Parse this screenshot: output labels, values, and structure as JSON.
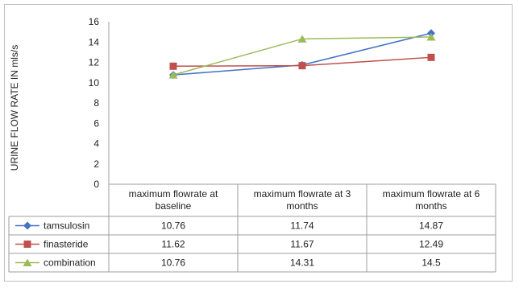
{
  "chart_data": {
    "type": "line",
    "title": "",
    "xlabel": "",
    "ylabel": "URINE FLOW RATE IN mls/s",
    "ylim": [
      0,
      16
    ],
    "y_ticks": [
      0,
      2,
      4,
      6,
      8,
      10,
      12,
      14,
      16
    ],
    "grid": false,
    "legend": "data-table",
    "categories": [
      "maximum flowrate at baseline",
      "maximum flowrate at 3 months",
      "maximum flowrate at 6 months"
    ],
    "category_lines": [
      [
        "maximum flowrate at",
        "baseline"
      ],
      [
        "maximum flowrate at 3",
        "months"
      ],
      [
        "maximum flowrate at 6",
        "months"
      ]
    ],
    "series": [
      {
        "name": "tamsulosin",
        "values": [
          10.76,
          11.74,
          14.87
        ],
        "value_labels": [
          "10.76",
          "11.74",
          "14.87"
        ],
        "color": "#4472c4",
        "marker": "diamond"
      },
      {
        "name": "finasteride",
        "values": [
          11.62,
          11.67,
          12.49
        ],
        "value_labels": [
          "11.62",
          "11.67",
          "12.49"
        ],
        "color": "#c0504d",
        "marker": "square"
      },
      {
        "name": "combination",
        "values": [
          10.76,
          14.31,
          14.5
        ],
        "value_labels": [
          "10.76",
          "14.31",
          "14.5"
        ],
        "color": "#9bbb59",
        "marker": "triangle"
      }
    ]
  }
}
